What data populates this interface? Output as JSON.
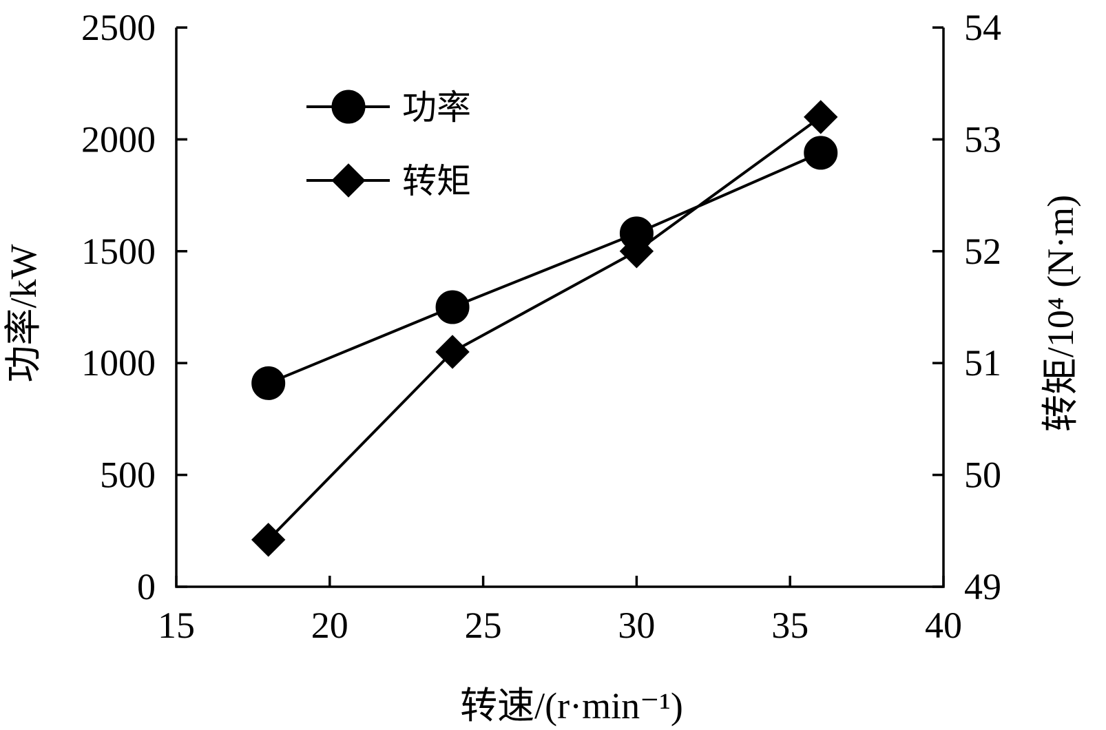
{
  "chart_data": {
    "type": "line",
    "xlabel": "转速/(r·min⁻¹)",
    "ylabel": "功率/kW",
    "y2label": "转矩/10⁴ (N·m)",
    "xlim": [
      15,
      40
    ],
    "ylim": [
      0,
      2500
    ],
    "y2lim": [
      49,
      54
    ],
    "xticks": [
      "15",
      "20",
      "25",
      "30",
      "35",
      "40"
    ],
    "yticks": [
      "0",
      "500",
      "1000",
      "1500",
      "2000",
      "2500"
    ],
    "y2ticks": [
      "49",
      "50",
      "51",
      "52",
      "53",
      "54"
    ],
    "legend_position": "top-left",
    "grid": false,
    "series": [
      {
        "name": "功率",
        "axis": "left",
        "marker": "circle",
        "x": [
          18,
          24,
          30,
          36
        ],
        "values": [
          910,
          1250,
          1580,
          1940
        ]
      },
      {
        "name": "转矩",
        "axis": "right",
        "marker": "diamond",
        "x": [
          18,
          24,
          30,
          36
        ],
        "values": [
          49.42,
          51.1,
          52.0,
          53.2
        ]
      }
    ]
  }
}
